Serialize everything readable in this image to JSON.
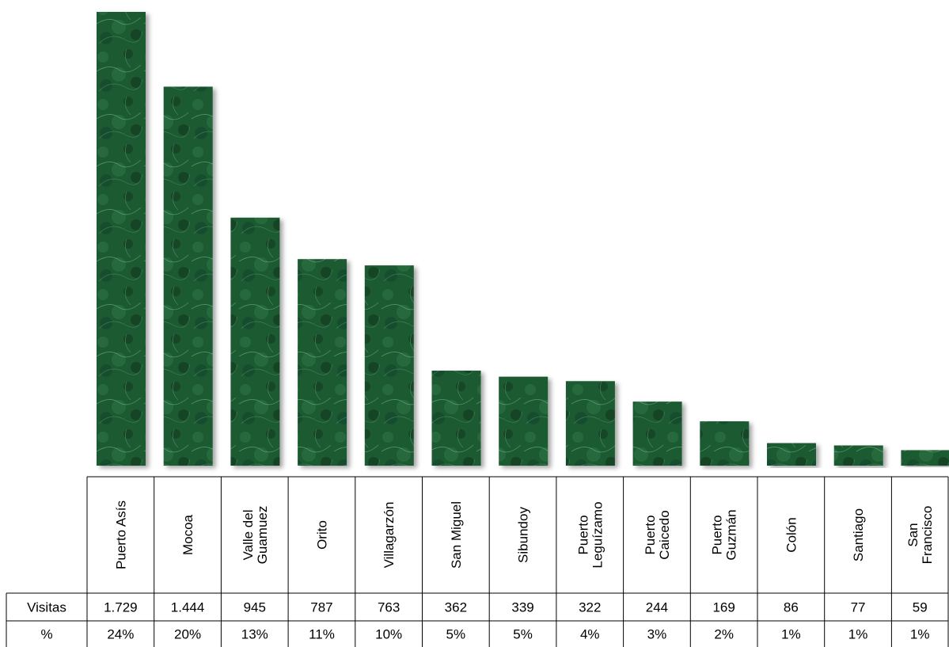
{
  "chart_data": {
    "type": "bar",
    "categories": [
      [
        "Puerto Asís"
      ],
      [
        "Mocoa"
      ],
      [
        "Valle del",
        "Guamuez"
      ],
      [
        "Orito"
      ],
      [
        "Villagarzón"
      ],
      [
        "San Miguel"
      ],
      [
        "Sibundoy"
      ],
      [
        "Puerto",
        "Leguízamo"
      ],
      [
        "Puerto",
        "Caicedo"
      ],
      [
        "Puerto",
        "Guzmán"
      ],
      [
        "Colón"
      ],
      [
        "Santiago"
      ],
      [
        "San",
        "Francisco"
      ]
    ],
    "values": [
      1729,
      1444,
      945,
      787,
      763,
      362,
      339,
      322,
      244,
      169,
      86,
      77,
      59
    ],
    "table": {
      "rows": [
        {
          "label": "Visitas",
          "cells": [
            "1.729",
            "1.444",
            "945",
            "787",
            "763",
            "362",
            "339",
            "322",
            "244",
            "169",
            "86",
            "77",
            "59"
          ]
        },
        {
          "label": "%",
          "cells": [
            "24%",
            "20%",
            "13%",
            "11%",
            "10%",
            "5%",
            "5%",
            "4%",
            "3%",
            "2%",
            "1%",
            "1%",
            "1%"
          ]
        }
      ]
    },
    "bar_fill": "#1f5c35",
    "ylim": [
      0,
      1729
    ]
  }
}
